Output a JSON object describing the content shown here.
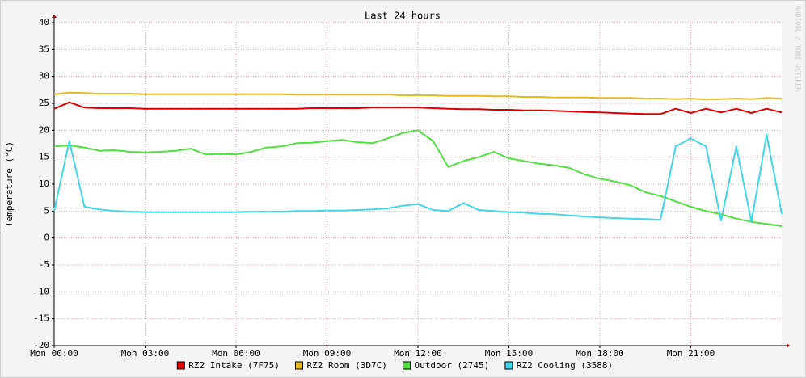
{
  "chart_data": {
    "type": "line",
    "title": "Last 24 hours",
    "y_label": "Temperature (°C)",
    "watermark": "RRDTOOL / TOBI OETIKER",
    "x": [
      0,
      0.5,
      1,
      1.5,
      2,
      2.5,
      3,
      3.5,
      4,
      4.5,
      5,
      5.5,
      6,
      6.5,
      7,
      7.5,
      8,
      8.5,
      9,
      9.5,
      10,
      10.5,
      11,
      11.5,
      12,
      12.5,
      13,
      13.5,
      14,
      14.5,
      15,
      15.5,
      16,
      16.5,
      17,
      17.5,
      18,
      18.5,
      19,
      19.5,
      20,
      20.5,
      21,
      21.5,
      22,
      22.5,
      23,
      23.5,
      24
    ],
    "xlim": [
      0,
      24
    ],
    "xticks": [
      {
        "value": 0,
        "label": "Mon 00:00"
      },
      {
        "value": 3,
        "label": "Mon 03:00"
      },
      {
        "value": 6,
        "label": "Mon 06:00"
      },
      {
        "value": 9,
        "label": "Mon 09:00"
      },
      {
        "value": 12,
        "label": "Mon 12:00"
      },
      {
        "value": 15,
        "label": "Mon 15:00"
      },
      {
        "value": 18,
        "label": "Mon 18:00"
      },
      {
        "value": 21,
        "label": "Mon 21:00"
      }
    ],
    "ylim": [
      -20,
      40
    ],
    "yticks": [
      -20,
      -15,
      -10,
      -5,
      0,
      5,
      10,
      15,
      20,
      25,
      30,
      35,
      40
    ],
    "grid": true,
    "series": [
      {
        "name": "RZ2 Intake (7F75)",
        "color": "#e00000",
        "values": [
          24.0,
          25.2,
          24.2,
          24.1,
          24.1,
          24.1,
          24.0,
          24.0,
          24.0,
          24.0,
          24.0,
          24.0,
          24.0,
          24.0,
          24.0,
          24.0,
          24.0,
          24.1,
          24.1,
          24.1,
          24.1,
          24.2,
          24.2,
          24.2,
          24.2,
          24.1,
          24.0,
          23.9,
          23.9,
          23.8,
          23.8,
          23.7,
          23.7,
          23.6,
          23.5,
          23.4,
          23.3,
          23.2,
          23.1,
          23.0,
          23.0,
          24.0,
          23.2,
          24.0,
          23.3,
          24.0,
          23.2,
          24.0,
          23.3
        ]
      },
      {
        "name": "RZ2 Room (3D7C)",
        "color": "#e8b820",
        "values": [
          26.7,
          27.0,
          26.9,
          26.8,
          26.8,
          26.8,
          26.7,
          26.7,
          26.7,
          26.7,
          26.7,
          26.7,
          26.7,
          26.7,
          26.7,
          26.7,
          26.6,
          26.6,
          26.6,
          26.6,
          26.6,
          26.6,
          26.6,
          26.5,
          26.5,
          26.5,
          26.4,
          26.4,
          26.4,
          26.3,
          26.3,
          26.2,
          26.2,
          26.1,
          26.1,
          26.1,
          26.0,
          26.0,
          26.0,
          25.9,
          25.9,
          25.8,
          25.9,
          25.7,
          25.8,
          25.9,
          25.8,
          26.0,
          25.9
        ]
      },
      {
        "name": "Outdoor (2745)",
        "color": "#50e040",
        "values": [
          17.0,
          17.2,
          16.8,
          16.2,
          16.3,
          16.0,
          15.9,
          16.0,
          16.2,
          16.6,
          15.5,
          15.6,
          15.5,
          16.0,
          16.8,
          17.0,
          17.6,
          17.7,
          18.0,
          18.2,
          17.8,
          17.6,
          18.5,
          19.5,
          20.0,
          18.0,
          13.2,
          14.3,
          15.0,
          16.0,
          14.8,
          14.3,
          13.8,
          13.5,
          13.0,
          11.8,
          11.0,
          10.5,
          9.8,
          8.5,
          7.8,
          6.8,
          5.8,
          5.0,
          4.4,
          3.6,
          3.0,
          2.6,
          2.2
        ]
      },
      {
        "name": "RZ2 Cooling (3588)",
        "color": "#40d8e8",
        "values": [
          5.0,
          18.0,
          5.8,
          5.3,
          5.0,
          4.9,
          4.8,
          4.8,
          4.8,
          4.8,
          4.8,
          4.8,
          4.8,
          4.9,
          4.9,
          4.9,
          5.0,
          5.0,
          5.1,
          5.1,
          5.2,
          5.3,
          5.5,
          6.0,
          6.3,
          5.2,
          5.0,
          6.5,
          5.2,
          5.0,
          4.8,
          4.7,
          4.5,
          4.4,
          4.2,
          4.0,
          3.8,
          3.7,
          3.6,
          3.5,
          3.4,
          17.0,
          18.5,
          17.0,
          3.2,
          17.0,
          3.0,
          19.2,
          4.5
        ]
      }
    ]
  }
}
